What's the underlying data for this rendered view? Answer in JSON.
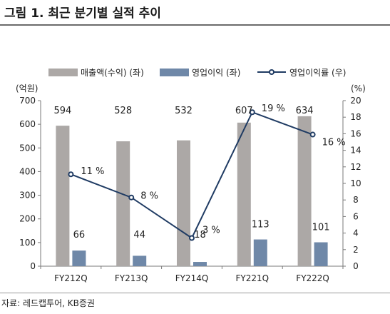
{
  "figure_title": "그림 1. 최근 분기별 실적 추이",
  "source": "자료: 레드캡투어, KB증권",
  "colors": {
    "revenue": "#aca8a6",
    "op_profit": "#6f88a8",
    "margin": "#1f3b63",
    "axis": "#7a7a7a"
  },
  "chart_data": {
    "type": "bar",
    "categories": [
      "FY212Q",
      "FY213Q",
      "FY214Q",
      "FY221Q",
      "FY222Q"
    ],
    "series": [
      {
        "name": "매출액(수익) (좌)",
        "type": "bar",
        "axis": "left",
        "values": [
          594,
          528,
          532,
          607,
          634
        ],
        "labels": [
          "594",
          "528",
          "532",
          "607",
          "634"
        ]
      },
      {
        "name": "영업이익 (좌)",
        "type": "bar",
        "axis": "left",
        "values": [
          66,
          44,
          18,
          113,
          101
        ],
        "labels": [
          "66",
          "44",
          "18",
          "113",
          "101"
        ]
      },
      {
        "name": "영업이익률 (우)",
        "type": "line",
        "axis": "right",
        "values": [
          11.1,
          8.3,
          3.4,
          18.6,
          15.9
        ],
        "labels": [
          "11 %",
          "8 %",
          "3 %",
          "19 %",
          "16 %"
        ]
      }
    ],
    "y_left": {
      "unit": "(억원)",
      "ylim": [
        0,
        700
      ],
      "ticks": [
        "0",
        "100",
        "200",
        "300",
        "400",
        "500",
        "600",
        "700"
      ]
    },
    "y_right": {
      "unit": "(%)",
      "ylim": [
        0,
        20
      ],
      "ticks": [
        "0",
        "2",
        "4",
        "6",
        "8",
        "10",
        "12",
        "14",
        "16",
        "18",
        "20"
      ]
    },
    "legend_position": "top",
    "grid": false
  }
}
